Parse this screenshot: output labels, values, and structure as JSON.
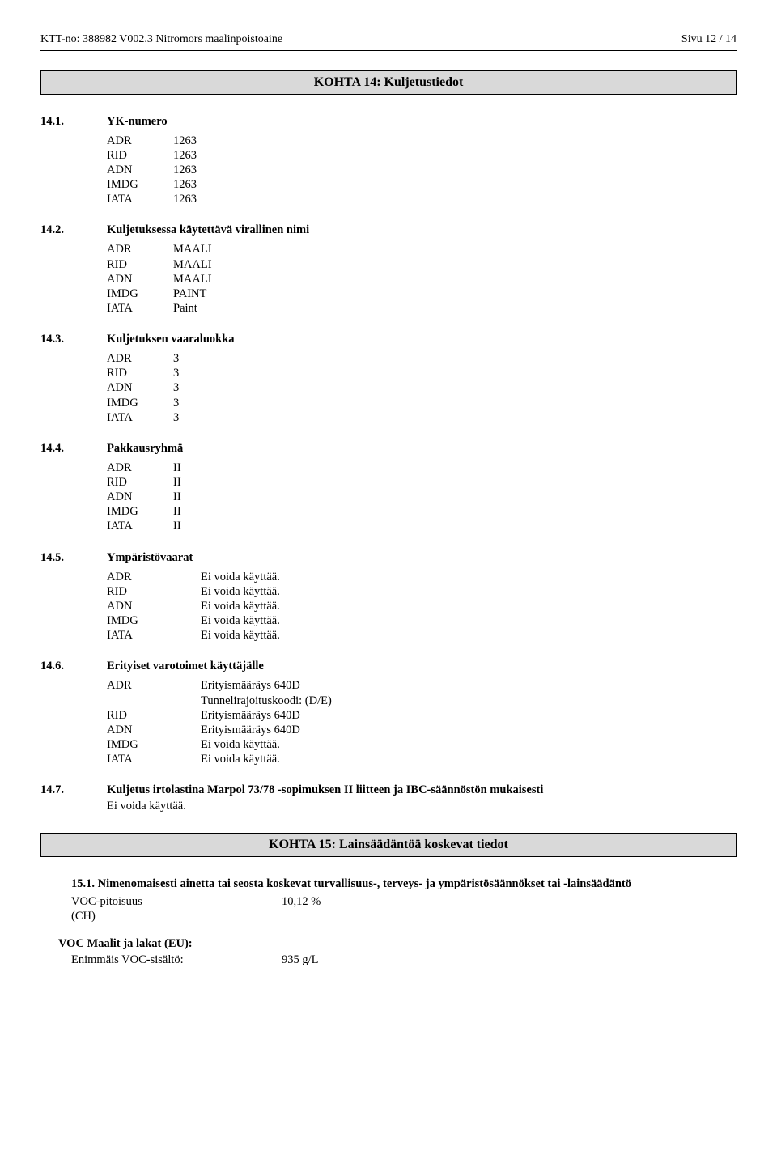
{
  "header": {
    "left": "KTT-no: 388982   V002.3   Nitromors maalinpoistoaine",
    "right": "Sivu 12 / 14"
  },
  "sections": {
    "s14": {
      "title": "KOHTA 14: Kuljetustiedot",
      "items": {
        "i1": {
          "num": "14.1.",
          "label": "YK-numero",
          "adr": "1263",
          "rid": "1263",
          "adn": "1263",
          "imdg": "1263",
          "iata": "1263"
        },
        "i2": {
          "num": "14.2.",
          "label": "Kuljetuksessa käytettävä virallinen nimi",
          "adr": "MAALI",
          "rid": "MAALI",
          "adn": "MAALI",
          "imdg": "PAINT",
          "iata": "Paint"
        },
        "i3": {
          "num": "14.3.",
          "label": "Kuljetuksen vaaraluokka",
          "adr": "3",
          "rid": "3",
          "adn": "3",
          "imdg": "3",
          "iata": "3"
        },
        "i4": {
          "num": "14.4.",
          "label": "Pakkausryhmä",
          "adr": "II",
          "rid": "II",
          "adn": "II",
          "imdg": "II",
          "iata": "II"
        },
        "i5": {
          "num": "14.5.",
          "label": "Ympäristövaarat",
          "adr": "Ei voida käyttää.",
          "rid": "Ei voida käyttää.",
          "adn": "Ei voida käyttää.",
          "imdg": "Ei voida käyttää.",
          "iata": "Ei voida käyttää."
        },
        "i6": {
          "num": "14.6.",
          "label": "Erityiset varotoimet käyttäjälle",
          "adr": "Erityismääräys 640D",
          "adr_extra": "Tunnelirajoituskoodi: (D/E)",
          "rid": "Erityismääräys 640D",
          "adn": "Erityismääräys 640D",
          "imdg": "Ei voida käyttää.",
          "iata": "Ei voida käyttää."
        },
        "i7": {
          "num": "14.7.",
          "label": "Kuljetus irtolastina Marpol 73/78 -sopimuksen II liitteen ja IBC-säännöstön mukaisesti",
          "note": "Ei voida käyttää."
        }
      }
    },
    "s15": {
      "title": "KOHTA 15: Lainsäädäntöä koskevat tiedot",
      "i1": {
        "num": "15.1.",
        "label": "Nimenomaisesti ainetta tai seosta koskevat turvallisuus-, terveys- ja ympäristösäännökset tai -lainsäädäntö"
      },
      "voc_ch_k": "VOC-pitoisuus",
      "voc_ch_v": "10,12 %",
      "voc_ch_paren": "(CH)",
      "voc_eu_head": "VOC Maalit ja lakat (EU):",
      "voc_eu_k": "Enimmäis VOC-sisältö:",
      "voc_eu_v": "935 g/L"
    }
  },
  "labels": {
    "adr": "ADR",
    "rid": "RID",
    "adn": "ADN",
    "imdg": "IMDG",
    "iata": "IATA"
  }
}
